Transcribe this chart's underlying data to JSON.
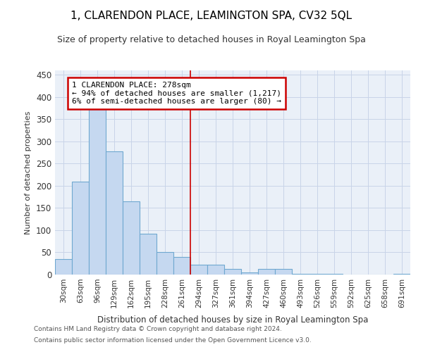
{
  "title": "1, CLARENDON PLACE, LEAMINGTON SPA, CV32 5QL",
  "subtitle": "Size of property relative to detached houses in Royal Leamington Spa",
  "xlabel": "Distribution of detached houses by size in Royal Leamington Spa",
  "ylabel": "Number of detached properties",
  "footer1": "Contains HM Land Registry data © Crown copyright and database right 2024.",
  "footer2": "Contains public sector information licensed under the Open Government Licence v3.0.",
  "categories": [
    "30sqm",
    "63sqm",
    "96sqm",
    "129sqm",
    "162sqm",
    "195sqm",
    "228sqm",
    "261sqm",
    "294sqm",
    "327sqm",
    "361sqm",
    "394sqm",
    "427sqm",
    "460sqm",
    "493sqm",
    "526sqm",
    "559sqm",
    "592sqm",
    "625sqm",
    "658sqm",
    "691sqm"
  ],
  "values": [
    35,
    210,
    375,
    277,
    165,
    92,
    51,
    40,
    23,
    22,
    13,
    4,
    13,
    13,
    1,
    1,
    1,
    0,
    0,
    0,
    2
  ],
  "bar_color": "#c5d8f0",
  "bar_edge_color": "#6fa8d0",
  "grid_color": "#c8d4e8",
  "bg_color": "#eaf0f8",
  "annotation_text1": "1 CLARENDON PLACE: 278sqm",
  "annotation_text2": "← 94% of detached houses are smaller (1,217)",
  "annotation_text3": "6% of semi-detached houses are larger (80) →",
  "annotation_box_color": "#cc0000",
  "prop_line_index": 8,
  "ylim": [
    0,
    460
  ],
  "yticks": [
    0,
    50,
    100,
    150,
    200,
    250,
    300,
    350,
    400,
    450
  ]
}
